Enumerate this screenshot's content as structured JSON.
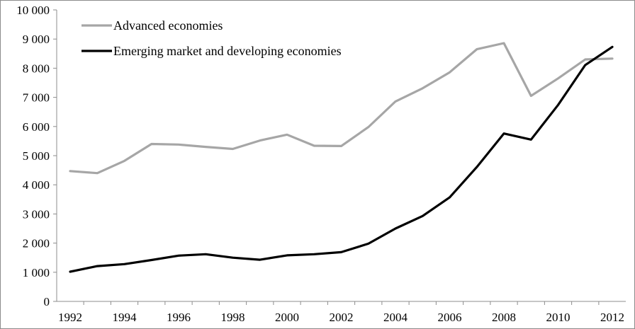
{
  "chart_data": {
    "type": "line",
    "x": [
      1992,
      1993,
      1994,
      1995,
      1996,
      1997,
      1998,
      1999,
      2000,
      2001,
      2002,
      2003,
      2004,
      2005,
      2006,
      2007,
      2008,
      2009,
      2010,
      2011,
      2012
    ],
    "x_tick_labels": [
      "1992",
      "1994",
      "1996",
      "1998",
      "2000",
      "2002",
      "2004",
      "2006",
      "2008",
      "2010",
      "2012"
    ],
    "y_tick_labels": [
      "0",
      "1 000",
      "2 000",
      "3 000",
      "4 000",
      "5 000",
      "6 000",
      "7 000",
      "8 000",
      "9 000",
      "10 000"
    ],
    "ylim": [
      0,
      10000
    ],
    "xlim": [
      1992,
      2012
    ],
    "grid": false,
    "legend_position": "top-left",
    "series": [
      {
        "name": "Advanced economies",
        "color": "#a6a6a6",
        "values": [
          4470,
          4400,
          4820,
          5400,
          5380,
          5300,
          5230,
          5520,
          5720,
          5340,
          5330,
          5980,
          6860,
          7310,
          7860,
          8650,
          8860,
          7050,
          7650,
          8300,
          8330
        ]
      },
      {
        "name": "Emerging market and developing economies",
        "color": "#000000",
        "values": [
          1020,
          1210,
          1280,
          1420,
          1570,
          1620,
          1500,
          1430,
          1580,
          1620,
          1690,
          1980,
          2500,
          2930,
          3570,
          4610,
          5760,
          5550,
          6740,
          8110,
          8730
        ]
      }
    ]
  }
}
